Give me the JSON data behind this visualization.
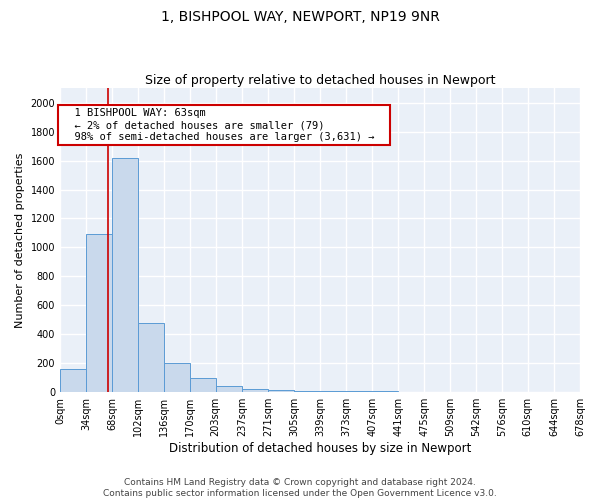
{
  "title": "1, BISHPOOL WAY, NEWPORT, NP19 9NR",
  "subtitle": "Size of property relative to detached houses in Newport",
  "xlabel": "Distribution of detached houses by size in Newport",
  "ylabel": "Number of detached properties",
  "bar_color": "#c9d9ec",
  "bar_edge_color": "#5b9bd5",
  "background_color": "#eaf0f8",
  "grid_color": "#ffffff",
  "bin_edges": [
    0,
    34,
    68,
    102,
    136,
    170,
    203,
    237,
    271,
    305,
    339,
    373,
    407,
    441,
    475,
    509,
    542,
    576,
    610,
    644,
    678
  ],
  "bin_labels": [
    "0sqm",
    "34sqm",
    "68sqm",
    "102sqm",
    "136sqm",
    "170sqm",
    "203sqm",
    "237sqm",
    "271sqm",
    "305sqm",
    "339sqm",
    "373sqm",
    "407sqm",
    "441sqm",
    "475sqm",
    "509sqm",
    "542sqm",
    "576sqm",
    "610sqm",
    "644sqm",
    "678sqm"
  ],
  "values": [
    160,
    1090,
    1620,
    480,
    200,
    100,
    40,
    25,
    15,
    10,
    5,
    5,
    5,
    0,
    0,
    0,
    0,
    0,
    0,
    0
  ],
  "ylim": [
    0,
    2100
  ],
  "yticks": [
    0,
    200,
    400,
    600,
    800,
    1000,
    1200,
    1400,
    1600,
    1800,
    2000
  ],
  "vline_x": 63,
  "vline_color": "#cc0000",
  "annotation_text": "  1 BISHPOOL WAY: 63sqm  \n  ← 2% of detached houses are smaller (79)  \n  98% of semi-detached houses are larger (3,631) →  ",
  "annotation_box_color": "#ffffff",
  "annotation_border_color": "#cc0000",
  "footer_text": "Contains HM Land Registry data © Crown copyright and database right 2024.\nContains public sector information licensed under the Open Government Licence v3.0.",
  "title_fontsize": 10,
  "subtitle_fontsize": 9,
  "ylabel_fontsize": 8,
  "xlabel_fontsize": 8.5,
  "tick_fontsize": 7,
  "annotation_fontsize": 7.5,
  "footer_fontsize": 6.5
}
